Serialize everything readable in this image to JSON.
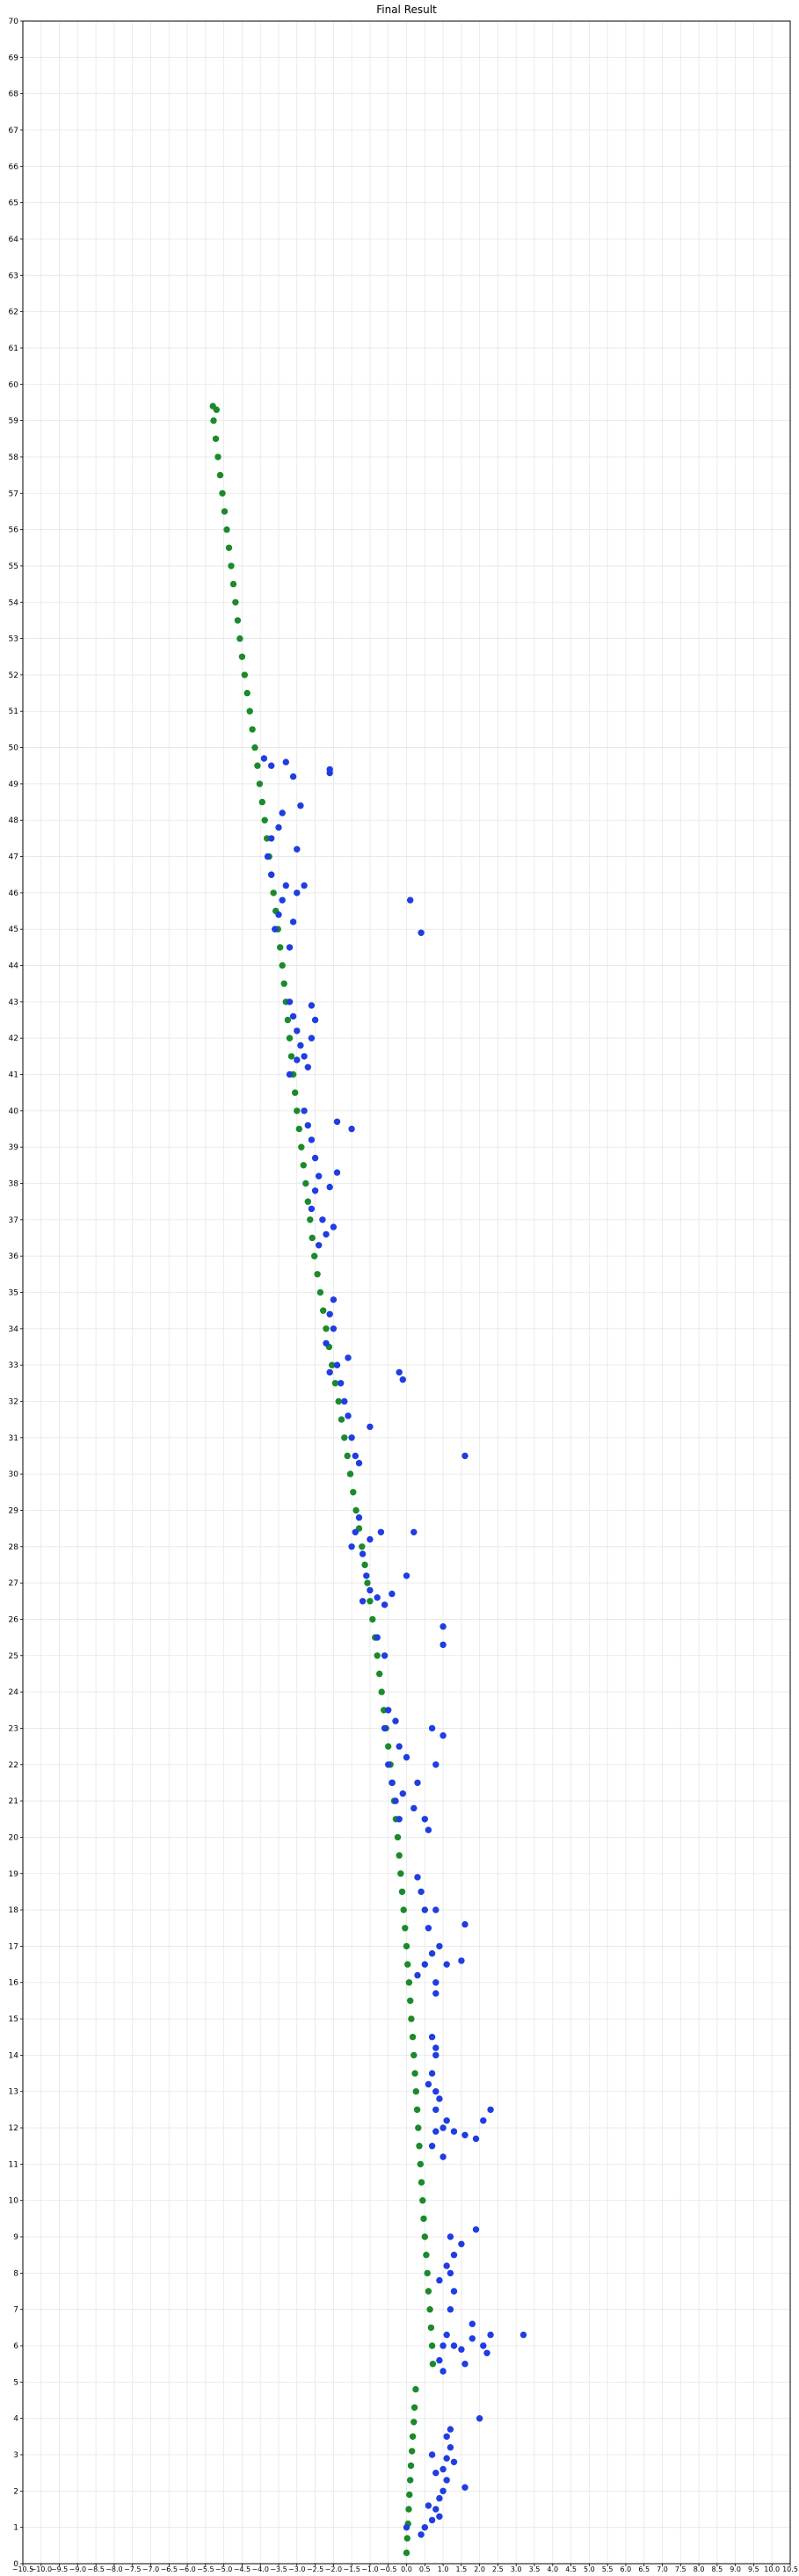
{
  "chart_data": {
    "type": "scatter",
    "title": "Final Result",
    "xlabel": "",
    "ylabel": "",
    "xlim": [
      -10.5,
      10.5
    ],
    "ylim": [
      0,
      70
    ],
    "x_tick_step": 0.5,
    "y_tick_step": 1,
    "x_tick_labels": [
      "−10.5",
      "−10.0",
      "−9.5",
      "−9.0",
      "−8.5",
      "−8.0",
      "−7.5",
      "−7.0",
      "−6.5",
      "−6.0",
      "−5.5",
      "−5.0",
      "−4.5",
      "−4.0",
      "−3.5",
      "−3.0",
      "−2.5",
      "−2.0",
      "−1.5",
      "−1.0",
      "−0.5",
      "0.0",
      "0.5",
      "1.0",
      "1.5",
      "2.0",
      "2.5",
      "3.0",
      "3.5",
      "4.0",
      "4.5",
      "5.0",
      "5.5",
      "6.0",
      "6.5",
      "7.0",
      "7.5",
      "8.0",
      "8.5",
      "9.0",
      "9.5",
      "10.0",
      "10.5"
    ],
    "grid": true,
    "legend": "none",
    "series": [
      {
        "color": "#1a8a2a",
        "points": [
          [
            0.0,
            0.3
          ],
          [
            0.02,
            0.7
          ],
          [
            0.04,
            1.1
          ],
          [
            0.06,
            1.5
          ],
          [
            0.08,
            1.9
          ],
          [
            0.1,
            2.3
          ],
          [
            0.12,
            2.7
          ],
          [
            0.15,
            3.1
          ],
          [
            0.17,
            3.5
          ],
          [
            0.2,
            3.9
          ],
          [
            0.22,
            4.3
          ],
          [
            0.25,
            4.8
          ],
          [
            0.72,
            5.5
          ],
          [
            0.7,
            6.0
          ],
          [
            0.67,
            6.5
          ],
          [
            0.64,
            7.0
          ],
          [
            0.6,
            7.5
          ],
          [
            0.57,
            8.0
          ],
          [
            0.54,
            8.5
          ],
          [
            0.5,
            9.0
          ],
          [
            0.47,
            9.5
          ],
          [
            0.44,
            10.0
          ],
          [
            0.41,
            10.5
          ],
          [
            0.38,
            11.0
          ],
          [
            0.35,
            11.5
          ],
          [
            0.32,
            12.0
          ],
          [
            0.29,
            12.5
          ],
          [
            0.26,
            13.0
          ],
          [
            0.23,
            13.5
          ],
          [
            0.2,
            14.0
          ],
          [
            0.17,
            14.5
          ],
          [
            0.13,
            15.0
          ],
          [
            0.1,
            15.5
          ],
          [
            0.07,
            16.0
          ],
          [
            0.03,
            16.5
          ],
          [
            0.0,
            17.0
          ],
          [
            -0.04,
            17.5
          ],
          [
            -0.08,
            18.0
          ],
          [
            -0.12,
            18.5
          ],
          [
            -0.16,
            19.0
          ],
          [
            -0.2,
            19.5
          ],
          [
            -0.24,
            20.0
          ],
          [
            -0.29,
            20.5
          ],
          [
            -0.34,
            21.0
          ],
          [
            -0.39,
            21.5
          ],
          [
            -0.44,
            22.0
          ],
          [
            -0.5,
            22.5
          ],
          [
            -0.56,
            23.0
          ],
          [
            -0.62,
            23.5
          ],
          [
            -0.68,
            24.0
          ],
          [
            -0.74,
            24.5
          ],
          [
            -0.8,
            25.0
          ],
          [
            -0.86,
            25.5
          ],
          [
            -0.93,
            26.0
          ],
          [
            -1.0,
            26.5
          ],
          [
            -1.07,
            27.0
          ],
          [
            -1.14,
            27.5
          ],
          [
            -1.22,
            28.0
          ],
          [
            -1.3,
            28.5
          ],
          [
            -1.38,
            29.0
          ],
          [
            -1.46,
            29.5
          ],
          [
            -1.54,
            30.0
          ],
          [
            -1.62,
            30.5
          ],
          [
            -1.7,
            31.0
          ],
          [
            -1.78,
            31.5
          ],
          [
            -1.86,
            32.0
          ],
          [
            -1.95,
            32.5
          ],
          [
            -2.04,
            33.0
          ],
          [
            -2.12,
            33.5
          ],
          [
            -2.2,
            34.0
          ],
          [
            -2.28,
            34.5
          ],
          [
            -2.36,
            35.0
          ],
          [
            -2.44,
            35.5
          ],
          [
            -2.52,
            36.0
          ],
          [
            -2.58,
            36.5
          ],
          [
            -2.64,
            37.0
          ],
          [
            -2.7,
            37.5
          ],
          [
            -2.76,
            38.0
          ],
          [
            -2.82,
            38.5
          ],
          [
            -2.88,
            39.0
          ],
          [
            -2.94,
            39.5
          ],
          [
            -3.0,
            40.0
          ],
          [
            -3.05,
            40.5
          ],
          [
            -3.1,
            41.0
          ],
          [
            -3.15,
            41.5
          ],
          [
            -3.2,
            42.0
          ],
          [
            -3.25,
            42.5
          ],
          [
            -3.3,
            43.0
          ],
          [
            -3.35,
            43.5
          ],
          [
            -3.4,
            44.0
          ],
          [
            -3.46,
            44.5
          ],
          [
            -3.52,
            45.0
          ],
          [
            -3.58,
            45.5
          ],
          [
            -3.64,
            46.0
          ],
          [
            -3.7,
            46.5
          ],
          [
            -3.76,
            47.0
          ],
          [
            -3.82,
            47.5
          ],
          [
            -3.88,
            48.0
          ],
          [
            -3.95,
            48.5
          ],
          [
            -4.02,
            49.0
          ],
          [
            -4.08,
            49.5
          ],
          [
            -4.15,
            50.0
          ],
          [
            -4.22,
            50.5
          ],
          [
            -4.29,
            51.0
          ],
          [
            -4.36,
            51.5
          ],
          [
            -4.43,
            52.0
          ],
          [
            -4.5,
            52.5
          ],
          [
            -4.56,
            53.0
          ],
          [
            -4.62,
            53.5
          ],
          [
            -4.68,
            54.0
          ],
          [
            -4.74,
            54.5
          ],
          [
            -4.8,
            55.0
          ],
          [
            -4.86,
            55.5
          ],
          [
            -4.92,
            56.0
          ],
          [
            -4.98,
            56.5
          ],
          [
            -5.04,
            57.0
          ],
          [
            -5.1,
            57.5
          ],
          [
            -5.16,
            58.0
          ],
          [
            -5.22,
            58.5
          ],
          [
            -5.28,
            59.0
          ],
          [
            -5.3,
            59.4
          ],
          [
            -5.2,
            59.3
          ]
        ]
      },
      {
        "color": "#1f3de0",
        "points": [
          [
            0.0,
            1.0
          ],
          [
            0.4,
            0.8
          ],
          [
            0.5,
            1.0
          ],
          [
            0.7,
            1.2
          ],
          [
            0.8,
            1.5
          ],
          [
            0.9,
            1.8
          ],
          [
            1.0,
            2.0
          ],
          [
            1.1,
            2.3
          ],
          [
            1.0,
            2.6
          ],
          [
            1.1,
            2.9
          ],
          [
            1.2,
            3.2
          ],
          [
            1.1,
            3.5
          ],
          [
            1.2,
            3.7
          ],
          [
            0.9,
            1.3
          ],
          [
            0.6,
            1.6
          ],
          [
            1.6,
            2.1
          ],
          [
            2.0,
            4.0
          ],
          [
            0.8,
            2.5
          ],
          [
            1.3,
            2.8
          ],
          [
            0.7,
            3.0
          ],
          [
            0.9,
            5.6
          ],
          [
            1.0,
            6.0
          ],
          [
            1.1,
            6.3
          ],
          [
            1.3,
            6.0
          ],
          [
            1.5,
            5.9
          ],
          [
            1.8,
            6.2
          ],
          [
            2.1,
            6.0
          ],
          [
            2.3,
            6.3
          ],
          [
            2.2,
            5.8
          ],
          [
            3.2,
            6.3
          ],
          [
            1.6,
            5.5
          ],
          [
            1.2,
            7.0
          ],
          [
            1.3,
            7.5
          ],
          [
            1.2,
            8.0
          ],
          [
            1.3,
            8.5
          ],
          [
            1.2,
            9.0
          ],
          [
            1.1,
            8.2
          ],
          [
            0.9,
            7.8
          ],
          [
            1.9,
            9.2
          ],
          [
            1.5,
            8.8
          ],
          [
            1.8,
            6.6
          ],
          [
            1.0,
            5.3
          ],
          [
            0.7,
            11.5
          ],
          [
            0.8,
            11.9
          ],
          [
            1.0,
            12.0
          ],
          [
            1.3,
            11.9
          ],
          [
            1.6,
            11.8
          ],
          [
            1.9,
            11.7
          ],
          [
            2.1,
            12.2
          ],
          [
            2.3,
            12.5
          ],
          [
            1.0,
            11.2
          ],
          [
            1.1,
            12.2
          ],
          [
            0.8,
            12.5
          ],
          [
            0.8,
            13.0
          ],
          [
            0.7,
            13.5
          ],
          [
            0.8,
            14.0
          ],
          [
            0.7,
            14.5
          ],
          [
            0.8,
            14.2
          ],
          [
            0.6,
            13.2
          ],
          [
            0.9,
            12.8
          ],
          [
            0.3,
            16.2
          ],
          [
            0.5,
            16.5
          ],
          [
            0.7,
            16.8
          ],
          [
            0.9,
            17.0
          ],
          [
            0.8,
            16.0
          ],
          [
            0.6,
            17.5
          ],
          [
            0.5,
            18.0
          ],
          [
            0.4,
            18.5
          ],
          [
            0.3,
            18.9
          ],
          [
            0.8,
            18.0
          ],
          [
            1.1,
            16.5
          ],
          [
            1.5,
            16.6
          ],
          [
            1.6,
            17.6
          ],
          [
            0.8,
            15.7
          ],
          [
            -0.5,
            22.0
          ],
          [
            -0.4,
            21.5
          ],
          [
            -0.3,
            21.0
          ],
          [
            -0.2,
            20.5
          ],
          [
            -0.1,
            21.2
          ],
          [
            0.2,
            20.8
          ],
          [
            0.5,
            20.5
          ],
          [
            0.6,
            20.2
          ],
          [
            -0.6,
            23.0
          ],
          [
            -0.5,
            23.5
          ],
          [
            -0.3,
            23.2
          ],
          [
            0.0,
            22.2
          ],
          [
            0.8,
            22.0
          ],
          [
            0.7,
            23.0
          ],
          [
            1.0,
            22.8
          ],
          [
            -0.2,
            22.5
          ],
          [
            0.3,
            21.5
          ],
          [
            -1.2,
            26.5
          ],
          [
            -1.0,
            26.8
          ],
          [
            -0.8,
            26.6
          ],
          [
            -0.6,
            26.4
          ],
          [
            -0.4,
            26.7
          ],
          [
            -1.1,
            27.2
          ],
          [
            -1.2,
            27.8
          ],
          [
            -1.4,
            28.4
          ],
          [
            -1.3,
            28.8
          ],
          [
            -1.0,
            28.2
          ],
          [
            -0.8,
            25.5
          ],
          [
            -0.6,
            25.0
          ],
          [
            0.0,
            27.2
          ],
          [
            0.2,
            28.4
          ],
          [
            1.0,
            25.8
          ],
          [
            1.0,
            25.3
          ],
          [
            -1.5,
            28.0
          ],
          [
            -0.7,
            28.4
          ],
          [
            -2.1,
            34.4
          ],
          [
            -2.0,
            34.0
          ],
          [
            -2.2,
            33.6
          ],
          [
            -1.9,
            33.0
          ],
          [
            -1.8,
            32.5
          ],
          [
            -1.7,
            32.0
          ],
          [
            -1.6,
            31.6
          ],
          [
            -1.5,
            31.0
          ],
          [
            -1.4,
            30.5
          ],
          [
            -1.3,
            30.3
          ],
          [
            -1.0,
            31.3
          ],
          [
            -2.0,
            34.8
          ],
          [
            -2.1,
            32.8
          ],
          [
            -0.2,
            32.8
          ],
          [
            -0.1,
            32.6
          ],
          [
            1.6,
            30.5
          ],
          [
            -1.6,
            33.2
          ],
          [
            -2.7,
            39.6
          ],
          [
            -2.6,
            39.2
          ],
          [
            -2.5,
            38.7
          ],
          [
            -2.4,
            38.2
          ],
          [
            -2.5,
            37.8
          ],
          [
            -2.6,
            37.3
          ],
          [
            -2.3,
            37.0
          ],
          [
            -2.2,
            36.6
          ],
          [
            -2.4,
            36.3
          ],
          [
            -2.1,
            37.9
          ],
          [
            -1.9,
            38.3
          ],
          [
            -2.8,
            40.0
          ],
          [
            -1.5,
            39.5
          ],
          [
            -1.9,
            39.7
          ],
          [
            -2.0,
            36.8
          ],
          [
            -3.2,
            43.0
          ],
          [
            -3.1,
            42.6
          ],
          [
            -3.0,
            42.2
          ],
          [
            -2.9,
            41.8
          ],
          [
            -2.8,
            41.5
          ],
          [
            -2.7,
            41.2
          ],
          [
            -3.2,
            41.0
          ],
          [
            -2.6,
            42.0
          ],
          [
            -2.5,
            42.5
          ],
          [
            -2.6,
            42.9
          ],
          [
            -3.0,
            41.4
          ],
          [
            -3.6,
            45.0
          ],
          [
            -3.5,
            45.4
          ],
          [
            -3.4,
            45.8
          ],
          [
            -3.3,
            46.2
          ],
          [
            -3.2,
            44.5
          ],
          [
            -3.1,
            45.2
          ],
          [
            -3.7,
            46.5
          ],
          [
            -3.8,
            47.0
          ],
          [
            -3.7,
            47.5
          ],
          [
            -3.5,
            47.8
          ],
          [
            -3.4,
            48.2
          ],
          [
            -3.0,
            46.0
          ],
          [
            -2.8,
            46.2
          ],
          [
            -3.0,
            47.2
          ],
          [
            -2.9,
            48.4
          ],
          [
            -3.9,
            49.7
          ],
          [
            -3.7,
            49.5
          ],
          [
            -3.3,
            49.6
          ],
          [
            -3.1,
            49.2
          ],
          [
            -2.1,
            49.3
          ],
          [
            -2.1,
            49.4
          ],
          [
            0.1,
            45.8
          ],
          [
            0.4,
            44.9
          ]
        ]
      }
    ]
  }
}
